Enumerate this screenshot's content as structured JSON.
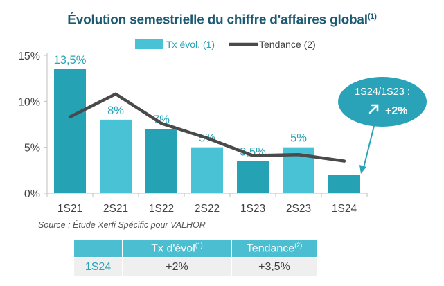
{
  "title": "Évolution semestrielle du chiffre d'affaires global",
  "title_note": "(1)",
  "source": "Source : Étude Xerfi Spécific pour VALHOR",
  "callout": {
    "line1": "1S24/1S23 :",
    "value": "+2%"
  },
  "colors": {
    "bar_dark": "#26a2b5",
    "bar_light": "#48c2d4",
    "trend": "#4a4a4a",
    "callout": "#2aa3b8",
    "axis_text": "#404040"
  },
  "table": {
    "headers": [
      "",
      "Tx d'évol",
      "Tendance"
    ],
    "header_notes": [
      "",
      "(1)",
      "(2)"
    ],
    "rows": [
      {
        "label": "1S24",
        "values": [
          "+2%",
          "+3,5%"
        ]
      }
    ]
  },
  "chart_data": {
    "type": "bar",
    "categories": [
      "1S21",
      "2S21",
      "1S22",
      "2S22",
      "1S23",
      "2S23",
      "1S24"
    ],
    "series": [
      {
        "name": "Tx évol. (1)",
        "type": "bar",
        "values": [
          13.5,
          8,
          7,
          5,
          3.5,
          5,
          2
        ],
        "labels": [
          "13,5%",
          "8%",
          "7%",
          "5%",
          "3,5%",
          "5%",
          ""
        ]
      },
      {
        "name": "Tendance (2)",
        "type": "line",
        "values": [
          8.3,
          10.8,
          7.6,
          6.0,
          4.1,
          4.2,
          3.5
        ]
      }
    ],
    "ylim": [
      0,
      15
    ],
    "yticks": [
      0,
      5,
      10,
      15
    ],
    "ytick_labels": [
      "0%",
      "5%",
      "10%",
      "15%"
    ],
    "legend": [
      "Tx évol. (1)",
      "Tendance (2)"
    ]
  }
}
